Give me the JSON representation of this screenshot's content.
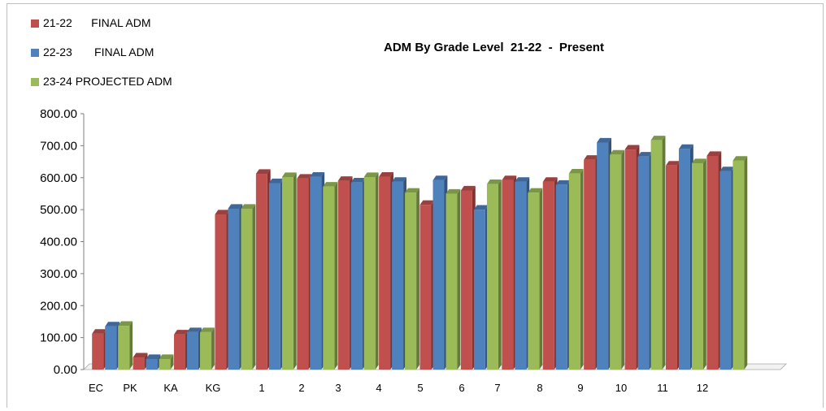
{
  "chart_data": {
    "type": "bar",
    "title": "ADM By Grade Level  21-22  -  Present",
    "xlabel": "",
    "ylabel": "",
    "ylim": [
      0,
      800
    ],
    "yticks": [
      "0.00",
      "100.00",
      "200.00",
      "300.00",
      "400.00",
      "500.00",
      "600.00",
      "700.00",
      "800.00"
    ],
    "grid": false,
    "legend_position": "top-left",
    "x_tick_labels": [
      "EC",
      "PK",
      "KA",
      "KG",
      "1",
      "2",
      "3",
      "4",
      "5",
      "6",
      "7",
      "8",
      "9",
      "10",
      "11",
      "12"
    ],
    "categories": [
      "EC",
      "PK",
      "KA",
      "KG",
      "1",
      "2",
      "3",
      "4",
      "5",
      "6",
      "7",
      "8",
      "9",
      "10",
      "11",
      "12",
      ""
    ],
    "series": [
      {
        "name": "21-22      FINAL ADM",
        "color": "#c0504d",
        "values": [
          112,
          38,
          110,
          485,
          612,
          597,
          590,
          603,
          515,
          560,
          592,
          587,
          656,
          688,
          638,
          668,
          0
        ]
      },
      {
        "name": "22-23       FINAL ADM",
        "color": "#4f81bd",
        "values": [
          135,
          33,
          117,
          503,
          583,
          603,
          585,
          587,
          592,
          500,
          587,
          578,
          710,
          666,
          690,
          620,
          0
        ]
      },
      {
        "name": "23-24 PROJECTED ADM",
        "color": "#9bbb59",
        "values": [
          137,
          33,
          117,
          503,
          602,
          572,
          602,
          553,
          550,
          580,
          553,
          613,
          672,
          717,
          645,
          653,
          0
        ]
      }
    ]
  }
}
